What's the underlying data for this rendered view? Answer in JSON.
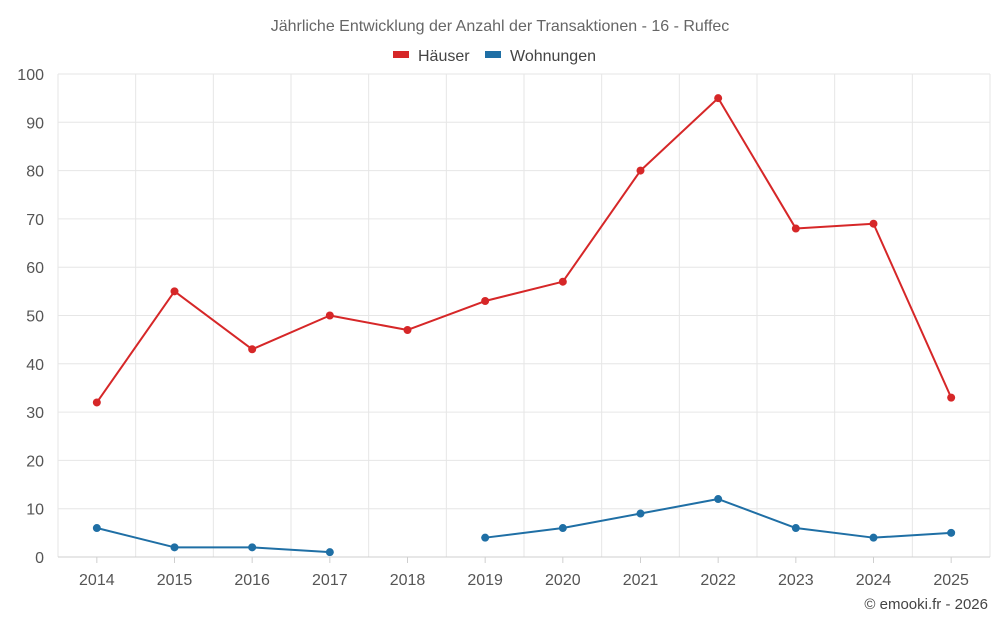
{
  "chart_data": {
    "type": "line",
    "title": "Jährliche Entwicklung der Anzahl der Transaktionen - 16 - Ruffec",
    "categories": [
      "2014",
      "2015",
      "2016",
      "2017",
      "2018",
      "2019",
      "2020",
      "2021",
      "2022",
      "2023",
      "2024",
      "2025"
    ],
    "series": [
      {
        "name": "Häuser",
        "color": "#d62728",
        "values": [
          32,
          55,
          43,
          50,
          47,
          53,
          57,
          80,
          95,
          68,
          69,
          33
        ]
      },
      {
        "name": "Wohnungen",
        "color": "#1f6fa5",
        "values": [
          6,
          2,
          2,
          1,
          null,
          4,
          6,
          9,
          12,
          6,
          4,
          5
        ]
      }
    ],
    "ylim": [
      0,
      100
    ],
    "yticks": [
      0,
      10,
      20,
      30,
      40,
      50,
      60,
      70,
      80,
      90,
      100
    ],
    "grid": true,
    "legend_position": "top-center"
  },
  "credit": "© emooki.fr - 2026"
}
